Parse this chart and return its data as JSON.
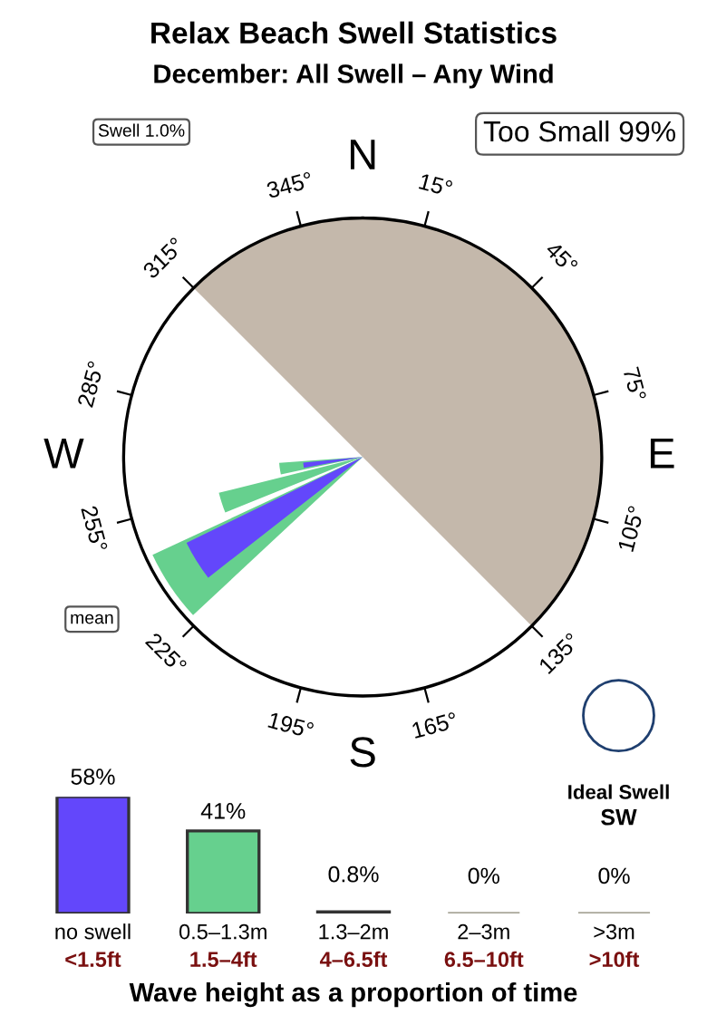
{
  "chart_data": [
    {
      "type": "other",
      "title": "Relax Beach Swell Statistics",
      "subtitle": "December: All Swell – Any Wind",
      "categories": [
        "N",
        "E",
        "S",
        "W"
      ],
      "annotations": [
        "15°",
        "45°",
        "75°",
        "105°",
        "135°",
        "165°",
        "195°",
        "225°",
        "255°",
        "285°",
        "315°",
        "345°",
        "Swell 1.0%",
        "Too Small 99%",
        "mean",
        "Ideal Swell",
        "SW"
      ]
    },
    {
      "type": "bar",
      "categories": [
        "no swell",
        "0.5–1.3m",
        "1.3–2m",
        "2–3m",
        ">3m"
      ],
      "values": [
        58,
        41,
        0.8,
        0,
        0
      ],
      "colors": [
        "#6347fb",
        "#66d08e",
        "#2e6b3e",
        "#aaa89a",
        "#aaa89a"
      ],
      "value_labels": [
        "58%",
        "41%",
        "0.8%",
        "0%",
        "0%"
      ],
      "annotations": [
        "<1.5ft",
        "1.5–4ft",
        "4–6.5ft",
        "6.5–10ft",
        ">10ft"
      ],
      "xlabel": "Wave height as a proportion of time"
    }
  ]
}
